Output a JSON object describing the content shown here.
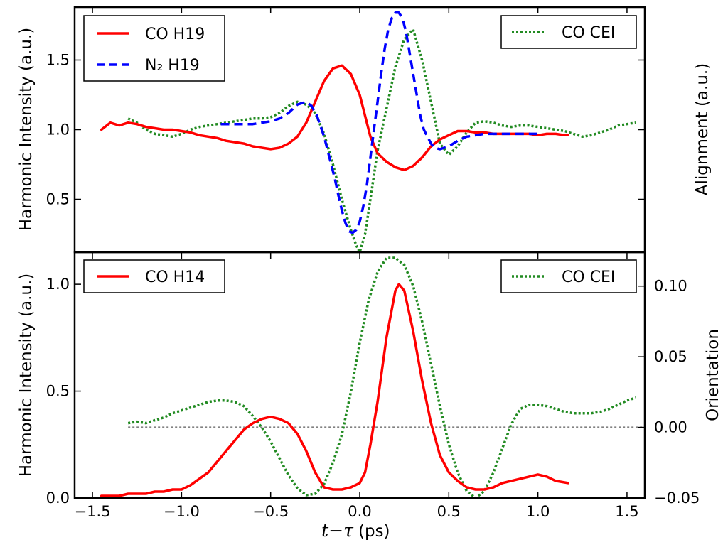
{
  "x_axis": {
    "label_var": "t−τ",
    "label_unit": "(ps)",
    "ticks": [
      -1.5,
      -1.0,
      -0.5,
      0.0,
      0.5,
      1.0,
      1.5
    ],
    "tick_labels": [
      "−1.5",
      "−1.0",
      "−0.5",
      "0.0",
      "0.5",
      "1.0",
      "1.5"
    ],
    "range": [
      -1.6,
      1.6
    ]
  },
  "chart_data": [
    {
      "type": "line",
      "panel": "top",
      "ylabel_left": "Harmonic Intensity (a.u.)",
      "ylabel_right": "Alignment (a.u.)",
      "ylim": [
        0.12,
        1.88
      ],
      "yticks": [
        0.5,
        1.0,
        1.5
      ],
      "ytick_labels": [
        "0.5",
        "1.0",
        "1.5"
      ],
      "legend_left": {
        "position": "upper-left",
        "entries": [
          "CO H19",
          "N₂ H19"
        ]
      },
      "legend_right": {
        "position": "upper-right",
        "entries": [
          "CO CEI"
        ]
      },
      "series": [
        {
          "name": "CO H19",
          "color": "#ff0000",
          "style": "solid",
          "x": [
            -1.45,
            -1.4,
            -1.35,
            -1.3,
            -1.25,
            -1.2,
            -1.15,
            -1.1,
            -1.05,
            -1.0,
            -0.95,
            -0.9,
            -0.85,
            -0.8,
            -0.75,
            -0.7,
            -0.65,
            -0.6,
            -0.55,
            -0.5,
            -0.45,
            -0.4,
            -0.35,
            -0.3,
            -0.25,
            -0.2,
            -0.15,
            -0.1,
            -0.05,
            0.0,
            0.03,
            0.06,
            0.1,
            0.15,
            0.2,
            0.25,
            0.3,
            0.35,
            0.4,
            0.45,
            0.5,
            0.55,
            0.6,
            0.65,
            0.7,
            0.75,
            0.8,
            0.85,
            0.9,
            0.95,
            1.0,
            1.05,
            1.1,
            1.15,
            1.17
          ],
          "y": [
            1.0,
            1.05,
            1.03,
            1.05,
            1.04,
            1.02,
            1.01,
            1.0,
            1.0,
            0.99,
            0.98,
            0.96,
            0.95,
            0.94,
            0.92,
            0.91,
            0.9,
            0.88,
            0.87,
            0.86,
            0.87,
            0.9,
            0.95,
            1.05,
            1.2,
            1.35,
            1.44,
            1.46,
            1.4,
            1.25,
            1.1,
            0.95,
            0.83,
            0.77,
            0.73,
            0.71,
            0.74,
            0.8,
            0.88,
            0.93,
            0.96,
            0.99,
            0.99,
            0.98,
            0.98,
            0.97,
            0.97,
            0.97,
            0.97,
            0.97,
            0.96,
            0.97,
            0.97,
            0.96,
            0.96
          ]
        },
        {
          "name": "N₂ H19",
          "color": "#0000ff",
          "style": "dashed",
          "x": [
            -0.78,
            -0.7,
            -0.6,
            -0.5,
            -0.45,
            -0.4,
            -0.35,
            -0.3,
            -0.27,
            -0.24,
            -0.2,
            -0.17,
            -0.14,
            -0.12,
            -0.1,
            -0.08,
            -0.06,
            -0.04,
            -0.02,
            0.0,
            0.02,
            0.04,
            0.06,
            0.08,
            0.1,
            0.12,
            0.14,
            0.16,
            0.18,
            0.2,
            0.22,
            0.24,
            0.26,
            0.28,
            0.3,
            0.32,
            0.34,
            0.36,
            0.38,
            0.4,
            0.42,
            0.45,
            0.5,
            0.55,
            0.6,
            0.7,
            0.8,
            0.9,
            1.0
          ],
          "y": [
            1.04,
            1.04,
            1.04,
            1.06,
            1.08,
            1.12,
            1.18,
            1.2,
            1.17,
            1.1,
            0.95,
            0.8,
            0.65,
            0.53,
            0.42,
            0.33,
            0.27,
            0.26,
            0.28,
            0.34,
            0.45,
            0.6,
            0.8,
            1.0,
            1.2,
            1.4,
            1.58,
            1.72,
            1.8,
            1.84,
            1.84,
            1.8,
            1.7,
            1.55,
            1.4,
            1.25,
            1.1,
            1.0,
            0.95,
            0.9,
            0.87,
            0.86,
            0.88,
            0.92,
            0.95,
            0.97,
            0.97,
            0.97,
            0.97
          ]
        }
      ],
      "series_right": [
        {
          "name": "CO CEI",
          "color": "#228b22",
          "style": "dotted",
          "x": [
            -1.3,
            -1.25,
            -1.2,
            -1.15,
            -1.1,
            -1.05,
            -1.0,
            -0.95,
            -0.9,
            -0.85,
            -0.8,
            -0.75,
            -0.7,
            -0.65,
            -0.6,
            -0.55,
            -0.5,
            -0.45,
            -0.4,
            -0.35,
            -0.3,
            -0.25,
            -0.2,
            -0.15,
            -0.1,
            -0.05,
            -0.02,
            0.0,
            0.03,
            0.06,
            0.1,
            0.15,
            0.2,
            0.25,
            0.3,
            0.35,
            0.4,
            0.45,
            0.5,
            0.55,
            0.6,
            0.65,
            0.7,
            0.75,
            0.8,
            0.85,
            0.9,
            0.95,
            1.0,
            1.05,
            1.1,
            1.15,
            1.2,
            1.25,
            1.3,
            1.35,
            1.4,
            1.45,
            1.5,
            1.55
          ],
          "y": [
            1.08,
            1.05,
            1.0,
            0.97,
            0.96,
            0.95,
            0.97,
            1.0,
            1.02,
            1.03,
            1.04,
            1.05,
            1.06,
            1.07,
            1.08,
            1.08,
            1.09,
            1.12,
            1.17,
            1.2,
            1.18,
            1.12,
            0.97,
            0.75,
            0.5,
            0.28,
            0.17,
            0.12,
            0.25,
            0.5,
            0.85,
            1.15,
            1.45,
            1.65,
            1.72,
            1.5,
            1.2,
            0.9,
            0.82,
            0.88,
            0.98,
            1.05,
            1.06,
            1.05,
            1.03,
            1.02,
            1.03,
            1.03,
            1.02,
            1.01,
            1.0,
            0.99,
            0.97,
            0.95,
            0.96,
            0.98,
            1.0,
            1.03,
            1.04,
            1.05
          ]
        }
      ]
    },
    {
      "type": "line",
      "panel": "bottom",
      "ylabel_left": "Harmonic Intensity (a.u.)",
      "ylabel_right": "Orientation",
      "ylim": [
        0.0,
        1.15
      ],
      "yticks": [
        0.0,
        0.5,
        1.0
      ],
      "ytick_labels": [
        "0.0",
        "0.5",
        "1.0"
      ],
      "ylim_right": [
        -0.05,
        0.124
      ],
      "yticks_right": [
        -0.05,
        0.0,
        0.05,
        0.1
      ],
      "ytick_labels_right": [
        "−0.05",
        "0.00",
        "0.05",
        "0.10"
      ],
      "legend_left": {
        "position": "upper-left",
        "entries": [
          "CO H14"
        ]
      },
      "legend_right": {
        "position": "upper-right",
        "entries": [
          "CO CEI"
        ]
      },
      "reference_line": {
        "axis": "right",
        "y": 0.0,
        "color": "#808080",
        "style": "dotted"
      },
      "series": [
        {
          "name": "CO H14",
          "color": "#ff0000",
          "style": "solid",
          "x": [
            -1.45,
            -1.4,
            -1.35,
            -1.3,
            -1.25,
            -1.2,
            -1.15,
            -1.1,
            -1.05,
            -1.0,
            -0.95,
            -0.9,
            -0.85,
            -0.8,
            -0.75,
            -0.7,
            -0.65,
            -0.6,
            -0.55,
            -0.5,
            -0.45,
            -0.4,
            -0.35,
            -0.3,
            -0.25,
            -0.2,
            -0.15,
            -0.1,
            -0.05,
            0.0,
            0.03,
            0.06,
            0.1,
            0.15,
            0.2,
            0.22,
            0.25,
            0.3,
            0.35,
            0.4,
            0.45,
            0.5,
            0.55,
            0.6,
            0.65,
            0.7,
            0.75,
            0.8,
            0.85,
            0.9,
            0.95,
            1.0,
            1.05,
            1.1,
            1.17
          ],
          "y": [
            0.01,
            0.01,
            0.01,
            0.02,
            0.02,
            0.02,
            0.03,
            0.03,
            0.04,
            0.04,
            0.06,
            0.09,
            0.12,
            0.17,
            0.22,
            0.27,
            0.32,
            0.35,
            0.37,
            0.38,
            0.37,
            0.35,
            0.3,
            0.22,
            0.12,
            0.05,
            0.04,
            0.04,
            0.05,
            0.07,
            0.12,
            0.25,
            0.45,
            0.75,
            0.97,
            1.0,
            0.97,
            0.78,
            0.55,
            0.35,
            0.2,
            0.12,
            0.08,
            0.05,
            0.04,
            0.04,
            0.05,
            0.07,
            0.08,
            0.09,
            0.1,
            0.11,
            0.1,
            0.08,
            0.07
          ]
        }
      ],
      "series_right": [
        {
          "name": "CO CEI",
          "color": "#228b22",
          "style": "dotted",
          "x": [
            -1.3,
            -1.25,
            -1.2,
            -1.15,
            -1.1,
            -1.05,
            -1.0,
            -0.95,
            -0.9,
            -0.85,
            -0.8,
            -0.75,
            -0.7,
            -0.65,
            -0.6,
            -0.55,
            -0.5,
            -0.45,
            -0.4,
            -0.35,
            -0.3,
            -0.25,
            -0.2,
            -0.15,
            -0.1,
            -0.05,
            0.0,
            0.05,
            0.1,
            0.15,
            0.2,
            0.25,
            0.3,
            0.35,
            0.4,
            0.45,
            0.5,
            0.55,
            0.6,
            0.65,
            0.7,
            0.75,
            0.8,
            0.85,
            0.9,
            0.95,
            1.0,
            1.05,
            1.1,
            1.15,
            1.2,
            1.25,
            1.3,
            1.35,
            1.4,
            1.45,
            1.5,
            1.55
          ],
          "y": [
            0.003,
            0.004,
            0.003,
            0.005,
            0.007,
            0.01,
            0.012,
            0.014,
            0.016,
            0.018,
            0.019,
            0.019,
            0.018,
            0.015,
            0.008,
            0.0,
            -0.01,
            -0.022,
            -0.034,
            -0.043,
            -0.048,
            -0.047,
            -0.04,
            -0.025,
            -0.005,
            0.025,
            0.06,
            0.09,
            0.11,
            0.12,
            0.12,
            0.115,
            0.1,
            0.075,
            0.045,
            0.015,
            -0.012,
            -0.032,
            -0.045,
            -0.05,
            -0.045,
            -0.032,
            -0.015,
            0.002,
            0.013,
            0.016,
            0.016,
            0.015,
            0.013,
            0.011,
            0.01,
            0.01,
            0.01,
            0.011,
            0.013,
            0.016,
            0.019,
            0.021
          ]
        }
      ]
    }
  ]
}
